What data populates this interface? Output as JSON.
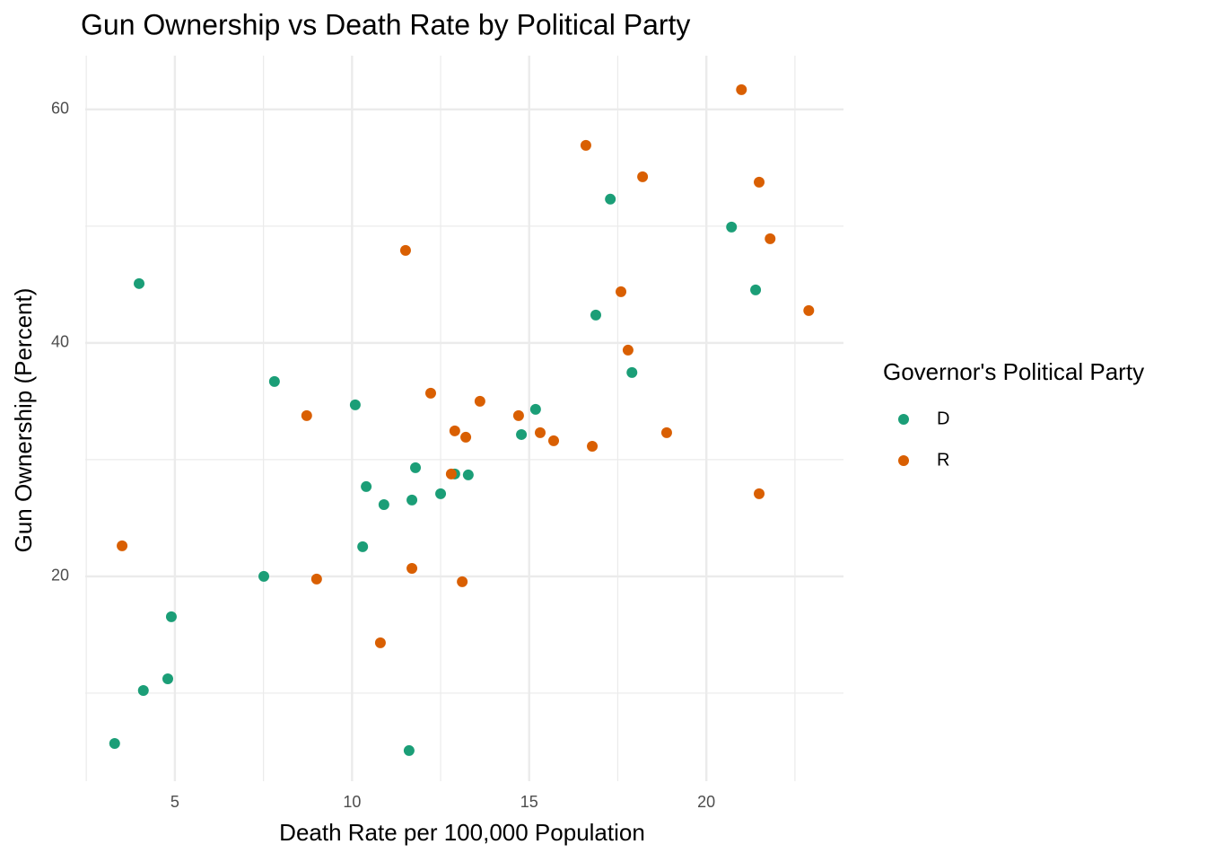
{
  "chart_data": {
    "type": "scatter",
    "title": "Gun Ownership vs Death Rate by Political Party",
    "x_label": "Death Rate per 100,000 Population",
    "y_label": "Gun Ownership (Percent)",
    "legend_title": "Governor's Political Party",
    "legend_position": "right",
    "grid": true,
    "xlim": [
      2.47,
      23.87
    ],
    "xticks": [
      5,
      10,
      15,
      20
    ],
    "xminor": [
      2.5,
      7.5,
      12.5,
      17.5,
      22.5
    ],
    "ylim": [
      2.46,
      64.6
    ],
    "yticks": [
      20,
      40,
      60
    ],
    "yminor": [
      10,
      30,
      50
    ],
    "series": [
      {
        "name": "D",
        "color": "#1b9e77",
        "x": [
          3.99,
          7.81,
          10.09,
          15.18,
          14.78,
          11.79,
          12.9,
          13.28,
          10.4,
          12.5,
          11.69,
          10.9,
          10.3,
          7.51,
          4.9,
          4.8,
          4.11,
          3.3,
          11.61,
          17.29,
          20.71,
          21.39,
          16.88,
          17.9
        ],
        "values": [
          45.08,
          36.69,
          34.69,
          34.31,
          32.15,
          29.31,
          28.77,
          28.69,
          27.69,
          27.08,
          26.54,
          26.15,
          22.54,
          20.0,
          16.54,
          11.23,
          10.23,
          5.69,
          5.08,
          52.31,
          49.92,
          44.54,
          42.38,
          37.46
        ]
      },
      {
        "name": "R",
        "color": "#d95f02",
        "x": [
          20.99,
          16.6,
          18.2,
          21.49,
          21.8,
          11.51,
          17.59,
          22.89,
          17.79,
          12.22,
          13.61,
          8.72,
          14.7,
          12.9,
          15.31,
          13.21,
          15.69,
          18.88,
          16.78,
          12.8,
          21.49,
          3.51,
          11.69,
          9.0,
          13.11,
          10.8
        ],
        "values": [
          61.69,
          56.92,
          54.23,
          53.77,
          48.92,
          47.92,
          44.38,
          42.77,
          39.38,
          35.69,
          35.0,
          33.77,
          33.77,
          32.46,
          32.31,
          31.92,
          31.62,
          32.31,
          31.15,
          28.77,
          27.08,
          22.62,
          20.69,
          19.77,
          19.54,
          14.31
        ]
      }
    ]
  }
}
